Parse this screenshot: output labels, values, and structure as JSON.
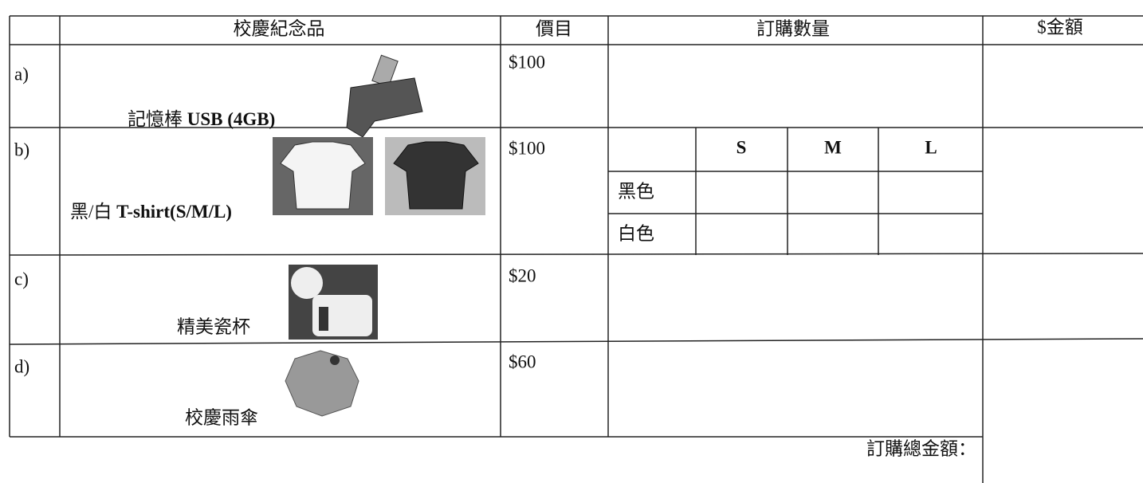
{
  "table": {
    "header": {
      "item": "校慶紀念品",
      "price": "價目",
      "quantity": "訂購數量",
      "amount": "$金額"
    },
    "rows": [
      {
        "label": "a)",
        "item_zh": "記憶棒",
        "item_en": "USB (4GB)",
        "price": "$100"
      },
      {
        "label": "b)",
        "item_zh": "黑/白",
        "item_en": "T-shirt(S/M/L)",
        "price": "$100"
      },
      {
        "label": "c)",
        "item": "精美瓷杯",
        "price": "$20"
      },
      {
        "label": "d)",
        "item": "校慶雨傘",
        "price": "$60"
      }
    ],
    "sizes": [
      "S",
      "M",
      "L"
    ],
    "colors": [
      "黑色",
      "白色"
    ],
    "total_label": "訂購總金額："
  }
}
